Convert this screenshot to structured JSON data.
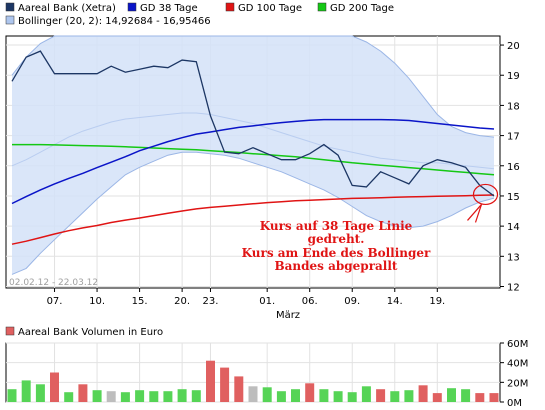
{
  "chart_data": [
    {
      "type": "line",
      "legend": [
        {
          "label": "Aareal Bank (Xetra)",
          "color": "#1c3664"
        },
        {
          "label": "GD 38 Tage",
          "color": "#0a14c8"
        },
        {
          "label": "GD 100 Tage",
          "color": "#e01414"
        },
        {
          "label": "GD 200 Tage",
          "color": "#14c814"
        },
        {
          "label": "Bollinger (20, 2): 14,92684 - 16,95466",
          "color": "#aec6ee"
        }
      ],
      "legend_position": "top",
      "date_range": "02.02.12 - 22.03.12",
      "x_ticks": [
        "07.",
        "10.",
        "15.",
        "20.",
        "23.",
        "01.",
        "06.",
        "09.",
        "14.",
        "19."
      ],
      "x_month_label": "März",
      "x_index_range": [
        0,
        34
      ],
      "y_ticks": [
        "12",
        "13",
        "14",
        "15",
        "16",
        "17",
        "18",
        "19",
        "20"
      ],
      "ylim": [
        11.95,
        20.3
      ],
      "grid": true,
      "x": [
        0,
        1,
        2,
        3,
        4,
        5,
        6,
        7,
        8,
        9,
        10,
        11,
        12,
        13,
        14,
        15,
        16,
        17,
        18,
        19,
        20,
        21,
        22,
        23,
        24,
        25,
        26,
        27,
        28,
        29,
        30,
        31,
        32,
        33,
        34
      ],
      "series": [
        {
          "name": "Aareal Bank (Xetra)",
          "color": "#1c3664",
          "values": [
            18.8,
            19.6,
            19.8,
            19.05,
            19.05,
            19.05,
            19.05,
            19.3,
            19.1,
            19.2,
            19.3,
            19.25,
            19.5,
            19.45,
            17.65,
            16.45,
            16.4,
            16.6,
            16.4,
            16.2,
            16.2,
            16.4,
            16.7,
            16.35,
            15.35,
            15.3,
            15.8,
            15.6,
            15.4,
            16.0,
            16.2,
            16.1,
            15.95,
            15.35,
            15.0
          ]
        },
        {
          "name": "GD 38 Tage",
          "color": "#0a14c8",
          "values": [
            14.75,
            14.98,
            15.2,
            15.4,
            15.58,
            15.75,
            15.94,
            16.12,
            16.3,
            16.5,
            16.65,
            16.8,
            16.93,
            17.05,
            17.12,
            17.2,
            17.27,
            17.32,
            17.38,
            17.43,
            17.47,
            17.51,
            17.53,
            17.53,
            17.53,
            17.53,
            17.53,
            17.52,
            17.5,
            17.45,
            17.4,
            17.35,
            17.3,
            17.25,
            17.22
          ]
        },
        {
          "name": "GD 100 Tage",
          "color": "#e01414",
          "values": [
            13.4,
            13.5,
            13.62,
            13.74,
            13.85,
            13.94,
            14.02,
            14.12,
            14.2,
            14.27,
            14.35,
            14.43,
            14.5,
            14.57,
            14.62,
            14.66,
            14.7,
            14.74,
            14.78,
            14.81,
            14.84,
            14.86,
            14.88,
            14.9,
            14.92,
            14.93,
            14.94,
            14.96,
            14.97,
            14.98,
            14.99,
            15.0,
            15.01,
            15.02,
            15.03
          ]
        },
        {
          "name": "GD 200 Tage",
          "color": "#14c814",
          "values": [
            16.7,
            16.7,
            16.7,
            16.69,
            16.68,
            16.67,
            16.66,
            16.65,
            16.63,
            16.61,
            16.59,
            16.57,
            16.55,
            16.53,
            16.5,
            16.47,
            16.44,
            16.4,
            16.37,
            16.33,
            16.3,
            16.25,
            16.2,
            16.15,
            16.1,
            16.06,
            16.02,
            15.98,
            15.94,
            15.9,
            15.86,
            15.82,
            15.78,
            15.74,
            15.7
          ]
        }
      ],
      "band": {
        "name": "Bollinger (20, 2)",
        "upper": [
          19.0,
          19.6,
          20.05,
          20.3,
          20.4,
          20.5,
          20.6,
          20.7,
          20.8,
          20.8,
          20.8,
          20.8,
          20.8,
          20.8,
          20.8,
          20.8,
          20.8,
          20.8,
          20.8,
          20.8,
          20.8,
          20.7,
          20.6,
          20.45,
          20.3,
          20.1,
          19.8,
          19.4,
          18.9,
          18.3,
          17.7,
          17.3,
          17.1,
          17.0,
          16.95
        ],
        "lower": [
          12.4,
          12.6,
          13.1,
          13.55,
          14.0,
          14.45,
          14.9,
          15.3,
          15.7,
          15.95,
          16.15,
          16.35,
          16.45,
          16.45,
          16.4,
          16.35,
          16.25,
          16.1,
          15.95,
          15.8,
          15.6,
          15.4,
          15.2,
          14.95,
          14.65,
          14.35,
          14.15,
          14.0,
          13.95,
          14.0,
          14.15,
          14.35,
          14.6,
          14.8,
          14.93
        ],
        "mid": [
          16.0,
          16.2,
          16.45,
          16.7,
          16.95,
          17.15,
          17.3,
          17.45,
          17.55,
          17.6,
          17.65,
          17.7,
          17.75,
          17.75,
          17.7,
          17.6,
          17.5,
          17.4,
          17.25,
          17.1,
          16.95,
          16.8,
          16.65,
          16.55,
          16.45,
          16.35,
          16.25,
          16.2,
          16.15,
          16.1,
          16.1,
          16.05,
          16.0,
          15.95,
          15.9
        ]
      },
      "annotation": {
        "lines": [
          "Kurs auf 38 Tage Linie",
          "gedreht.",
          "Kurs am Ende des Bollinger",
          "Bandes abgeprallt"
        ],
        "color": "#e01414",
        "target": {
          "x": 33.4,
          "y": 15.05
        }
      }
    },
    {
      "type": "bar",
      "legend": [
        {
          "label": "Aareal Bank Volumen in Euro",
          "color": "#e06060"
        }
      ],
      "y_ticks": [
        "0M",
        "20M",
        "40M",
        "60M"
      ],
      "ylim": [
        0,
        60
      ],
      "grid": true,
      "x": [
        0,
        1,
        2,
        3,
        4,
        5,
        6,
        7,
        8,
        9,
        10,
        11,
        12,
        13,
        14,
        15,
        16,
        17,
        18,
        19,
        20,
        21,
        22,
        23,
        24,
        25,
        26,
        27,
        28,
        29,
        30,
        31,
        32,
        33,
        34
      ],
      "values": [
        13,
        22,
        18,
        30,
        10,
        18,
        12,
        11,
        10,
        12,
        11,
        11,
        13,
        12,
        42,
        35,
        26,
        16,
        15,
        11,
        13,
        19,
        13,
        11,
        10,
        16,
        13,
        11,
        12,
        17,
        9,
        14,
        13,
        9,
        9
      ],
      "bar_colors": [
        "#56d456",
        "#56d456",
        "#56d456",
        "#e06060",
        "#56d456",
        "#e06060",
        "#56d456",
        "#bdbdbd",
        "#56d456",
        "#56d456",
        "#56d456",
        "#56d456",
        "#56d456",
        "#56d456",
        "#e06060",
        "#e06060",
        "#e06060",
        "#bdbdbd",
        "#56d456",
        "#56d456",
        "#56d456",
        "#e06060",
        "#56d456",
        "#56d456",
        "#56d456",
        "#56d456",
        "#e06060",
        "#56d456",
        "#56d456",
        "#e06060",
        "#e06060",
        "#56d456",
        "#56d456",
        "#e06060",
        "#e06060"
      ]
    }
  ]
}
